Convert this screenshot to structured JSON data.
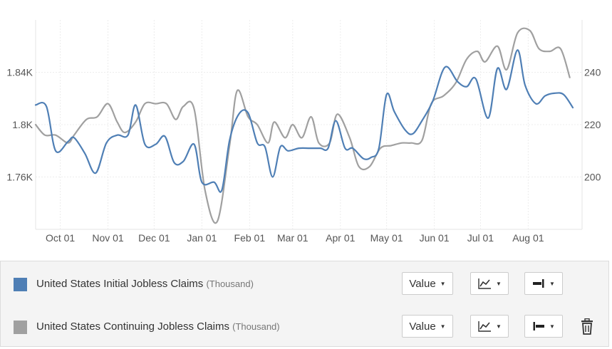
{
  "chart_data": {
    "type": "line",
    "x_ticks": [
      "Oct 01",
      "Nov 01",
      "Dec 01",
      "Jan 01",
      "Feb 01",
      "Mar 01",
      "Apr 01",
      "May 01",
      "Jun 01",
      "Jul 01",
      "Aug 01"
    ],
    "y_left": {
      "ticks": [
        "1.76K",
        "1.8K",
        "1.84K"
      ],
      "tick_values": [
        1760,
        1800,
        1840
      ],
      "range": [
        1720,
        1880
      ]
    },
    "y_right": {
      "ticks": [
        "200",
        "220",
        "240"
      ],
      "tick_values": [
        200,
        220,
        240
      ],
      "range": [
        180,
        260
      ]
    },
    "grid": true,
    "legend_placement": "bottom",
    "series": [
      {
        "name": "United States Initial Jobless Claims",
        "unit": "(Thousand)",
        "axis": "left",
        "color": "#4f7fb5",
        "points": [
          [
            "Sep 15",
            1815
          ],
          [
            "Sep 22",
            1814
          ],
          [
            "Sep 28",
            1780
          ],
          [
            "Oct 06",
            1787
          ],
          [
            "Oct 10",
            1790
          ],
          [
            "Oct 17",
            1778
          ],
          [
            "Oct 24",
            1763
          ],
          [
            "Oct 31",
            1786
          ],
          [
            "Nov 07",
            1792
          ],
          [
            "Nov 14",
            1792
          ],
          [
            "Nov 19",
            1815
          ],
          [
            "Nov 25",
            1785
          ],
          [
            "Dec 02",
            1785
          ],
          [
            "Dec 08",
            1791
          ],
          [
            "Dec 14",
            1771
          ],
          [
            "Dec 20",
            1772
          ],
          [
            "Dec 27",
            1785
          ],
          [
            "Jan 01",
            1756
          ],
          [
            "Jan 09",
            1756
          ],
          [
            "Jan 14",
            1750
          ],
          [
            "Jan 19",
            1788
          ],
          [
            "Jan 25",
            1808
          ],
          [
            "Jan 31",
            1809
          ],
          [
            "Feb 06",
            1786
          ],
          [
            "Feb 11",
            1783
          ],
          [
            "Feb 16",
            1760
          ],
          [
            "Feb 21",
            1783
          ],
          [
            "Feb 26",
            1780
          ],
          [
            "Mar 05",
            1782
          ],
          [
            "Mar 12",
            1782
          ],
          [
            "Mar 19",
            1782
          ],
          [
            "Mar 24",
            1782
          ],
          [
            "Mar 29",
            1803
          ],
          [
            "Apr 04",
            1782
          ],
          [
            "Apr 09",
            1782
          ],
          [
            "Apr 16",
            1774
          ],
          [
            "Apr 21",
            1775
          ],
          [
            "Apr 26",
            1782
          ],
          [
            "May 01",
            1823
          ],
          [
            "May 06",
            1810
          ],
          [
            "May 13",
            1796
          ],
          [
            "May 18",
            1793
          ],
          [
            "May 24",
            1803
          ],
          [
            "May 31",
            1818
          ],
          [
            "Jun 08",
            1844
          ],
          [
            "Jun 16",
            1833
          ],
          [
            "Jun 22",
            1829
          ],
          [
            "Jun 28",
            1835
          ],
          [
            "Jul 06",
            1805
          ],
          [
            "Jul 12",
            1843
          ],
          [
            "Jul 18",
            1827
          ],
          [
            "Jul 25",
            1857
          ],
          [
            "Jul 30",
            1830
          ],
          [
            "Aug 06",
            1816
          ],
          [
            "Aug 12",
            1822
          ],
          [
            "Aug 18",
            1824
          ],
          [
            "Aug 24",
            1823
          ],
          [
            "Aug 30",
            1813
          ]
        ]
      },
      {
        "name": "United States Continuing Jobless Claims",
        "unit": "(Thousand)",
        "axis": "right",
        "color": "#a0a0a0",
        "points": [
          [
            "Sep 15",
            220
          ],
          [
            "Sep 21",
            216
          ],
          [
            "Sep 28",
            216
          ],
          [
            "Oct 06",
            213
          ],
          [
            "Oct 10",
            216
          ],
          [
            "Oct 18",
            222
          ],
          [
            "Oct 25",
            223
          ],
          [
            "Nov 01",
            228
          ],
          [
            "Nov 07",
            221
          ],
          [
            "Nov 12",
            217
          ],
          [
            "Nov 19",
            221
          ],
          [
            "Nov 25",
            228
          ],
          [
            "Dec 02",
            228
          ],
          [
            "Dec 09",
            228
          ],
          [
            "Dec 15",
            222
          ],
          [
            "Dec 20",
            227
          ],
          [
            "Dec 27",
            226
          ],
          [
            "Jan 03",
            195
          ],
          [
            "Jan 11",
            183
          ],
          [
            "Jan 19",
            212
          ],
          [
            "Jan 24",
            233
          ],
          [
            "Jan 31",
            223
          ],
          [
            "Feb 06",
            220
          ],
          [
            "Feb 13",
            213
          ],
          [
            "Feb 17",
            221
          ],
          [
            "Feb 24",
            215
          ],
          [
            "Mar 01",
            220
          ],
          [
            "Mar 07",
            215
          ],
          [
            "Mar 13",
            223
          ],
          [
            "Mar 18",
            213
          ],
          [
            "Mar 25",
            213
          ],
          [
            "Mar 30",
            224
          ],
          [
            "Apr 07",
            215
          ],
          [
            "Apr 13",
            204
          ],
          [
            "Apr 20",
            204
          ],
          [
            "Apr 27",
            211
          ],
          [
            "May 04",
            212
          ],
          [
            "May 11",
            213
          ],
          [
            "May 17",
            213
          ],
          [
            "May 24",
            214
          ],
          [
            "May 30",
            228
          ],
          [
            "Jun 07",
            231
          ],
          [
            "Jun 15",
            236
          ],
          [
            "Jun 22",
            245
          ],
          [
            "Jun 29",
            248
          ],
          [
            "Jul 04",
            244
          ],
          [
            "Jul 12",
            250
          ],
          [
            "Jul 18",
            241
          ],
          [
            "Jul 25",
            255
          ],
          [
            "Aug 02",
            256
          ],
          [
            "Aug 08",
            249
          ],
          [
            "Aug 15",
            248
          ],
          [
            "Aug 22",
            249
          ],
          [
            "Aug 28",
            238
          ]
        ]
      }
    ]
  },
  "legend": {
    "items": [
      {
        "label": "United States Initial Jobless Claims",
        "unit": "(Thousand)",
        "color": "#4f7fb5",
        "value_button": "Value"
      },
      {
        "label": "United States Continuing Jobless Claims",
        "unit": "(Thousand)",
        "color": "#a0a0a0",
        "value_button": "Value"
      }
    ],
    "icons": {
      "chart_type": "line-chart-icon",
      "axis_right": "axis-right-icon",
      "axis_left": "axis-left-icon",
      "delete": "trash-icon"
    }
  }
}
